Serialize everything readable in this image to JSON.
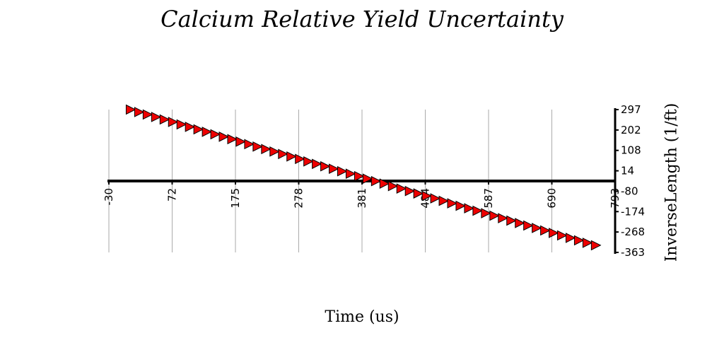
{
  "chart_data": {
    "type": "scatter",
    "title": "Calcium Relative Yield Uncertainty",
    "xlabel": "Time (us)",
    "ylabel": "InverseLength (1/ft)",
    "xlim": [
      -30,
      793
    ],
    "ylim": [
      -363,
      297
    ],
    "x_ticks": [
      "-30",
      "72",
      "175",
      "278",
      "381",
      "484",
      "587",
      "690",
      "793"
    ],
    "y_ticks": [
      "297",
      "202",
      "108",
      "14",
      "-80",
      "-174",
      "-268",
      "-363"
    ],
    "grid": "vertical",
    "marker": "triangle-right",
    "colors": {
      "marker_fill": "#ee0000",
      "marker_edge": "#000000",
      "axis": "#000000",
      "grid": "#aaaaaa"
    },
    "series": [
      {
        "x": [
          5,
          18.75,
          32.5,
          46.25,
          60,
          73.75,
          87.5,
          101.25,
          115,
          128.75,
          142.5,
          156.25,
          170,
          183.75,
          197.5,
          211.25,
          225,
          238.75,
          252.5,
          266.25,
          280,
          293.75,
          307.5,
          321.25,
          335,
          348.75,
          362.5,
          376.25,
          390,
          403.75,
          417.5,
          431.25,
          445,
          458.75,
          472.5,
          486.25,
          500,
          513.75,
          527.5,
          541.25,
          555,
          568.75,
          582.5,
          596.25,
          610,
          623.75,
          637.5,
          651.25,
          665,
          678.75,
          692.5,
          706.25,
          720,
          733.75,
          747.5,
          761.25
        ],
        "y": [
          297,
          285.6,
          274.2,
          262.8,
          251.4,
          240,
          228.6,
          217.2,
          205.8,
          194.4,
          183,
          171.6,
          160.2,
          148.8,
          137.4,
          126,
          114.6,
          103.2,
          91.8,
          80.4,
          69,
          57.6,
          46.2,
          34.8,
          23.4,
          12,
          0.6,
          -10.8,
          -22.2,
          -33.6,
          -45,
          -56.4,
          -67.8,
          -79.2,
          -90.6,
          -102,
          -113.4,
          -124.8,
          -136.2,
          -147.6,
          -159,
          -170.4,
          -181.8,
          -193.2,
          -204.6,
          -216,
          -227.4,
          -238.8,
          -250.2,
          -261.6,
          -273,
          -284.4,
          -295.8,
          -307.2,
          -318.6,
          -330
        ]
      }
    ]
  }
}
